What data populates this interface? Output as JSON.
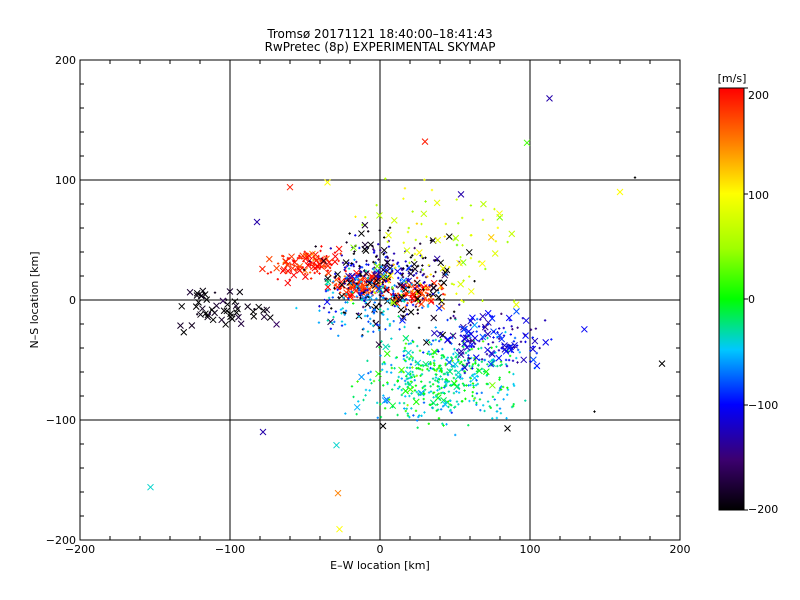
{
  "chart_data": {
    "type": "scatter",
    "title": "Tromsø 20171121 18:40:00–18:41:43",
    "subtitle": "RwPretec (8p) EXPERIMENTAL SKYMAP",
    "xlabel": "E–W location [km]",
    "ylabel": "N–S location [km]",
    "xlim": [
      -200,
      200
    ],
    "ylim": [
      -200,
      200
    ],
    "xticks": [
      "−200",
      "−100",
      "0",
      "100",
      "200"
    ],
    "yticks": [
      "200",
      "100",
      "0",
      "−100",
      "−200"
    ],
    "grid_lines_at": {
      "x": [
        -100,
        0,
        100
      ],
      "y": [
        -100,
        0,
        100
      ]
    },
    "colorbar": {
      "label": "[m/s]",
      "range": [
        -200,
        200
      ],
      "ticks": [
        "200",
        "100",
        "0",
        "−100",
        "−200"
      ],
      "colormap": "black-purple-blue-cyan-green-yellow-orange-red"
    },
    "marker_types": [
      "x (larger cross)",
      "+ (small dot)"
    ],
    "clusters": [
      {
        "name": "west-red-arc",
        "center": [
          -48,
          30
        ],
        "spread": [
          12,
          6
        ],
        "velocity": 190,
        "n": 120,
        "marker": "mixed"
      },
      {
        "name": "center-red",
        "center": [
          -12,
          12
        ],
        "spread": [
          10,
          6
        ],
        "velocity": 185,
        "n": 140,
        "marker": "mixed"
      },
      {
        "name": "center-east-red",
        "center": [
          25,
          6
        ],
        "spread": [
          8,
          5
        ],
        "velocity": 185,
        "n": 80,
        "marker": "mixed"
      },
      {
        "name": "center-blue",
        "center": [
          0,
          20
        ],
        "spread": [
          18,
          14
        ],
        "velocity": -120,
        "n": 180,
        "marker": "dot"
      },
      {
        "name": "center-black",
        "center": [
          5,
          15
        ],
        "spread": [
          22,
          22
        ],
        "velocity": -200,
        "n": 160,
        "marker": "mixed"
      },
      {
        "name": "center-mixed",
        "center": [
          -5,
          0
        ],
        "spread": [
          20,
          15
        ],
        "velocity": -60,
        "n": 140,
        "marker": "dot"
      },
      {
        "name": "southeast-cyan",
        "center": [
          40,
          -65
        ],
        "spread": [
          25,
          18
        ],
        "velocity": -40,
        "n": 330,
        "marker": "dot"
      },
      {
        "name": "southeast-green",
        "center": [
          40,
          -60
        ],
        "spread": [
          22,
          16
        ],
        "velocity": 0,
        "n": 170,
        "marker": "dot"
      },
      {
        "name": "east-blue",
        "center": [
          75,
          -35
        ],
        "spread": [
          20,
          12
        ],
        "velocity": -110,
        "n": 150,
        "marker": "mixed"
      },
      {
        "name": "west-black-crosses",
        "center": [
          -105,
          -8
        ],
        "spread": [
          16,
          10
        ],
        "velocity": -200,
        "n": 55,
        "marker": "cross"
      },
      {
        "name": "north-scatter",
        "center": [
          40,
          40
        ],
        "spread": [
          30,
          25
        ],
        "velocity": 80,
        "n": 100,
        "marker": "mixed"
      }
    ],
    "isolated_points": [
      {
        "x": 113,
        "y": 168,
        "v": -130,
        "m": "x"
      },
      {
        "x": 30,
        "y": 132,
        "v": 190,
        "m": "x"
      },
      {
        "x": 98,
        "y": 131,
        "v": 20,
        "m": "x"
      },
      {
        "x": 160,
        "y": 90,
        "v": 100,
        "m": "x"
      },
      {
        "x": 170,
        "y": 102,
        "v": -200,
        "m": "+"
      },
      {
        "x": -60,
        "y": 94,
        "v": 190,
        "m": "x"
      },
      {
        "x": -35,
        "y": 98,
        "v": 100,
        "m": "x"
      },
      {
        "x": -82,
        "y": 65,
        "v": -130,
        "m": "x"
      },
      {
        "x": 54,
        "y": 88,
        "v": -130,
        "m": "x"
      },
      {
        "x": 188,
        "y": -53,
        "v": -200,
        "m": "x"
      },
      {
        "x": -153,
        "y": -156,
        "v": -40,
        "m": "x"
      },
      {
        "x": -28,
        "y": -161,
        "v": 150,
        "m": "x"
      },
      {
        "x": -27,
        "y": -191,
        "v": 100,
        "m": "x"
      },
      {
        "x": -29,
        "y": -121,
        "v": -40,
        "m": "x"
      },
      {
        "x": -78,
        "y": -110,
        "v": -130,
        "m": "x"
      },
      {
        "x": 143,
        "y": -93,
        "v": -200,
        "m": "+"
      },
      {
        "x": 2,
        "y": -105,
        "v": -200,
        "m": "x"
      },
      {
        "x": 85,
        "y": -107,
        "v": -200,
        "m": "x"
      }
    ]
  }
}
